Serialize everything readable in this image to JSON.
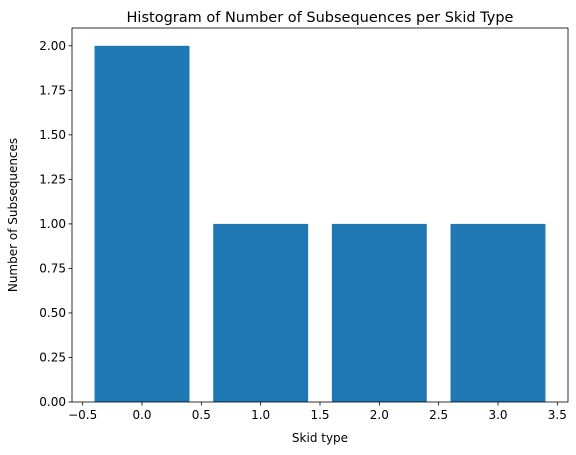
{
  "chart_data": {
    "type": "bar",
    "title": "Histogram of Number of Subsequences per Skid Type",
    "xlabel": "Skid type",
    "ylabel": "Number of Subsequences",
    "x": [
      0,
      1,
      2,
      3
    ],
    "values": [
      2,
      1,
      1,
      1
    ],
    "bar_width": 0.8,
    "bar_color": "#1f77b4",
    "xlim": [
      -0.59,
      3.59
    ],
    "ylim": [
      0,
      2.1
    ],
    "xticks": [
      -0.5,
      0.0,
      0.5,
      1.0,
      1.5,
      2.0,
      2.5,
      3.0,
      3.5
    ],
    "xtick_labels": [
      "−0.5",
      "0.0",
      "0.5",
      "1.0",
      "1.5",
      "2.0",
      "2.5",
      "3.0",
      "3.5"
    ],
    "yticks": [
      0,
      0.25,
      0.5,
      0.75,
      1.0,
      1.25,
      1.5,
      1.75,
      2.0
    ],
    "ytick_labels": [
      "0.00",
      "0.25",
      "0.50",
      "0.75",
      "1.00",
      "1.25",
      "1.50",
      "1.75",
      "2.00"
    ],
    "grid": false,
    "legend": "none"
  }
}
